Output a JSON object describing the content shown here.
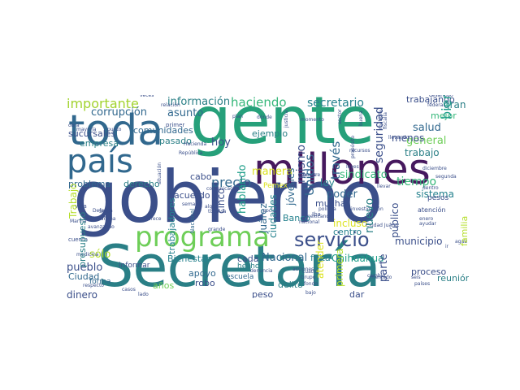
{
  "palette": {
    "dark_purple": "#46195e",
    "indigo": "#3b4f8a",
    "blue": "#31688e",
    "teal": "#26828e",
    "green_teal": "#1f9e89",
    "green": "#35b779",
    "light_green": "#6ece58",
    "yellow_green": "#b5de2b",
    "yellow": "#dbe21f"
  },
  "words": [
    {
      "text": "gobierno",
      "color": "#3b4f8a"
    },
    {
      "text": "gente",
      "color": "#26a07a"
    },
    {
      "text": "Secretaría",
      "color": "#2a7f86"
    },
    {
      "text": "millones",
      "color": "#46195e"
    },
    {
      "text": "toda",
      "color": "#31688e"
    },
    {
      "text": "país",
      "color": "#31688e"
    },
    {
      "text": "programa",
      "color": "#6ece58"
    },
    {
      "text": "servicio",
      "color": "#3b4f8a"
    },
    {
      "text": "importante",
      "color": "#a2d32f"
    },
    {
      "text": "información",
      "color": "#2a7f86"
    },
    {
      "text": "haciendo",
      "color": "#35b779"
    },
    {
      "text": "secretario",
      "color": "#26828e"
    },
    {
      "text": "corrupción",
      "color": "#31688e"
    },
    {
      "text": "asunto",
      "color": "#31688e"
    },
    {
      "text": "trabajando",
      "color": "#3b4f8a"
    },
    {
      "text": "bien",
      "color": "#1f9e89"
    },
    {
      "text": "gran",
      "color": "#2a7f86"
    },
    {
      "text": "mejor",
      "color": "#35b779"
    },
    {
      "text": "seguridad",
      "color": "#3b4f8a"
    },
    {
      "text": "salud",
      "color": "#31688e"
    },
    {
      "text": "general",
      "color": "#6ece58"
    },
    {
      "text": "trabajo",
      "color": "#2a7f86"
    },
    {
      "text": "menos",
      "color": "#3b4f8a"
    },
    {
      "text": "sindicato",
      "color": "#35b779"
    },
    {
      "text": "tiempo",
      "color": "#35b779"
    },
    {
      "text": "Unidos",
      "color": "#31688e"
    },
    {
      "text": "través",
      "color": "#31688e"
    },
    {
      "text": "mismo",
      "color": "#3b4f8a"
    },
    {
      "text": "ejemplo",
      "color": "#2a7f86"
    },
    {
      "text": "hoy",
      "color": "#3b4f8a"
    },
    {
      "text": "ley",
      "color": "#26828e"
    },
    {
      "text": "poder",
      "color": "#31688e"
    },
    {
      "text": "nuevo",
      "color": "#2a7f86"
    },
    {
      "text": "público",
      "color": "#3b4f8a"
    },
    {
      "text": "sistema",
      "color": "#26828e"
    },
    {
      "text": "municipio",
      "color": "#3b4f8a"
    },
    {
      "text": "familia",
      "color": "#b5de2b"
    },
    {
      "text": "comunidades",
      "color": "#31688e"
    },
    {
      "text": "pasado",
      "color": "#2a7f86"
    },
    {
      "text": "sucursales",
      "color": "#3b4f8a"
    },
    {
      "text": "empresa",
      "color": "#2a7f86"
    },
    {
      "text": "problema",
      "color": "#31688e"
    },
    {
      "text": "derecho",
      "color": "#2a7f86"
    },
    {
      "text": "precio",
      "color": "#31688e"
    },
    {
      "text": "acuerdo",
      "color": "#3b4f8a"
    },
    {
      "text": "cabo",
      "color": "#3b4f8a"
    },
    {
      "text": "manera",
      "color": "#dbe21f"
    },
    {
      "text": "hablando",
      "color": "#1f9e89"
    },
    {
      "text": "cinco",
      "color": "#3b4f8a"
    },
    {
      "text": "Trabajo",
      "color": "#b5de2b"
    },
    {
      "text": "presupuesto",
      "color": "#2a7f86"
    },
    {
      "text": "trabajadores",
      "color": "#26828e"
    },
    {
      "text": "Juárez",
      "color": "#31688e"
    },
    {
      "text": "ciudades",
      "color": "#26828e"
    },
    {
      "text": "jóvenes",
      "color": "#31688e"
    },
    {
      "text": "Banco",
      "color": "#26828e"
    },
    {
      "text": "incluso",
      "color": "#dbe21f"
    },
    {
      "text": "centro",
      "color": "#26828e"
    },
    {
      "text": "muchas",
      "color": "#3b4f8a"
    },
    {
      "text": "parte",
      "color": "#3b4f8a"
    },
    {
      "text": "Chihuahua",
      "color": "#1f9e89"
    },
    {
      "text": "Nacional",
      "color": "#31688e"
    },
    {
      "text": "falta",
      "color": "#26828e"
    },
    {
      "text": "cada",
      "color": "#3b4f8a"
    },
    {
      "text": "Bienestar",
      "color": "#26828e"
    },
    {
      "text": "sólo",
      "color": "#b5de2b"
    },
    {
      "text": "pueblo",
      "color": "#3b4f8a"
    },
    {
      "text": "Ciudad",
      "color": "#31688e"
    },
    {
      "text": "dinero",
      "color": "#3b4f8a"
    },
    {
      "text": "años",
      "color": "#6ece58"
    },
    {
      "text": "apoyo",
      "color": "#31688e"
    },
    {
      "text": "robo",
      "color": "#3b4f8a"
    },
    {
      "text": "delito",
      "color": "#2a7f86"
    },
    {
      "text": "peso",
      "color": "#3b4f8a"
    },
    {
      "text": "dar",
      "color": "#3b4f8a"
    },
    {
      "text": "primera",
      "color": "#b5de2b"
    },
    {
      "text": "atender",
      "color": "#dbe21f"
    },
    {
      "text": "reunión",
      "color": "#2a7f86"
    },
    {
      "text": "proceso",
      "color": "#3b4f8a"
    },
    {
      "text": "Pemex",
      "color": "#dbe21f"
    },
    {
      "text": "Nacional",
      "color": "#31688e"
    },
    {
      "text": "forma",
      "color": "#31688e"
    },
    {
      "text": "informar",
      "color": "#3b4f8a"
    },
    {
      "text": "hecho",
      "color": "#2a7f86"
    },
    {
      "text": "escuela",
      "color": "#31688e"
    },
    {
      "text": "pesos",
      "color": "#3b4f8a"
    },
    {
      "text": "atención",
      "color": "#3b4f8a"
    },
    {
      "text": "siempre",
      "color": "#3b4f8a"
    },
    {
      "text": "vida",
      "color": "#3b4f8a"
    },
    {
      "text": "solo",
      "color": "#3b4f8a"
    },
    {
      "text": "cuenta",
      "color": "#3b4f8a"
    },
    {
      "text": "medicina",
      "color": "#3b4f8a"
    },
    {
      "text": "respecto",
      "color": "#3b4f8a"
    },
    {
      "text": "casos",
      "color": "#3b4f8a"
    },
    {
      "text": "lado",
      "color": "#3b4f8a"
    },
    {
      "text": "mayoría",
      "color": "#3b4f8a"
    },
    {
      "text": "punto",
      "color": "#3b4f8a"
    },
    {
      "text": "primer",
      "color": "#3b4f8a"
    },
    {
      "text": "plan",
      "color": "#3b4f8a"
    },
    {
      "text": "dónde",
      "color": "#3b4f8a"
    },
    {
      "text": "momento",
      "color": "#3b4f8a"
    },
    {
      "text": "llevando",
      "color": "#3b4f8a"
    },
    {
      "text": "República",
      "color": "#3b4f8a"
    },
    {
      "text": "semana",
      "color": "#3b4f8a"
    },
    {
      "text": "favor",
      "color": "#3b4f8a"
    },
    {
      "text": "grande",
      "color": "#3b4f8a"
    },
    {
      "text": "internet",
      "color": "#3b4f8a"
    },
    {
      "text": "comunicación",
      "color": "#3b4f8a"
    },
    {
      "text": "temas",
      "color": "#3b4f8a"
    },
    {
      "text": "recursos",
      "color": "#3b4f8a"
    },
    {
      "text": "llevar",
      "color": "#3b4f8a"
    },
    {
      "text": "mañana",
      "color": "#3b4f8a"
    },
    {
      "text": "Marina",
      "color": "#3b4f8a"
    },
    {
      "text": "obra",
      "color": "#3b4f8a"
    },
    {
      "text": "fondo",
      "color": "#3b4f8a"
    },
    {
      "text": "bajo",
      "color": "#3b4f8a"
    },
    {
      "text": "mercado",
      "color": "#3b4f8a"
    },
    {
      "text": "seis",
      "color": "#3b4f8a"
    },
    {
      "text": "países",
      "color": "#3b4f8a"
    },
    {
      "text": "agua",
      "color": "#3b4f8a"
    },
    {
      "text": "federal",
      "color": "#3b4f8a"
    },
    {
      "text": "veces",
      "color": "#3b4f8a"
    },
    {
      "text": "relación",
      "color": "#3b4f8a"
    },
    {
      "text": "mexicanos",
      "color": "#3b4f8a"
    },
    {
      "text": "Grupo",
      "color": "#3b4f8a"
    },
    {
      "text": "denuncia",
      "color": "#3b4f8a"
    },
    {
      "text": "política",
      "color": "#3b4f8a"
    },
    {
      "text": "segunda",
      "color": "#3b4f8a"
    },
    {
      "text": "dentro",
      "color": "#3b4f8a"
    },
    {
      "text": "enero",
      "color": "#3b4f8a"
    },
    {
      "text": "ayudar",
      "color": "#3b4f8a"
    },
    {
      "text": "cuatro",
      "color": "#3b4f8a"
    },
    {
      "text": "situación",
      "color": "#3b4f8a"
    },
    {
      "text": "Ciudad Juárez",
      "color": "#3b4f8a"
    },
    {
      "text": "investigación",
      "color": "#3b4f8a"
    },
    {
      "text": "desarrollo",
      "color": "#3b4f8a"
    },
    {
      "text": "propósito",
      "color": "#3b4f8a"
    },
    {
      "text": "fiscalía",
      "color": "#3b4f8a"
    },
    {
      "text": "Defensa",
      "color": "#3b4f8a"
    },
    {
      "text": "Hacienda",
      "color": "#3b4f8a"
    },
    {
      "text": "avanzando",
      "color": "#3b4f8a"
    },
    {
      "text": "algún",
      "color": "#3b4f8a"
    },
    {
      "text": "todavía",
      "color": "#3b4f8a"
    },
    {
      "text": "nacional",
      "color": "#3b4f8a"
    },
    {
      "text": "parece",
      "color": "#3b4f8a"
    },
    {
      "text": "justicia",
      "color": "#3b4f8a"
    },
    {
      "text": "materia",
      "color": "#3b4f8a"
    },
    {
      "text": "acciones",
      "color": "#3b4f8a"
    },
    {
      "text": "Iba",
      "color": "#3b4f8a"
    },
    {
      "text": "ir",
      "color": "#3b4f8a"
    },
    {
      "text": "sector",
      "color": "#3b4f8a"
    },
    {
      "text": "leyes",
      "color": "#3b4f8a"
    },
    {
      "text": "cambio",
      "color": "#3b4f8a"
    },
    {
      "text": "buena",
      "color": "#3b4f8a"
    },
    {
      "text": "diciembre",
      "color": "#3b4f8a"
    },
    {
      "text": "social",
      "color": "#3b4f8a"
    },
    {
      "text": "sociedad",
      "color": "#3b4f8a"
    },
    {
      "text": "Dios",
      "color": "#3b4f8a"
    }
  ]
}
